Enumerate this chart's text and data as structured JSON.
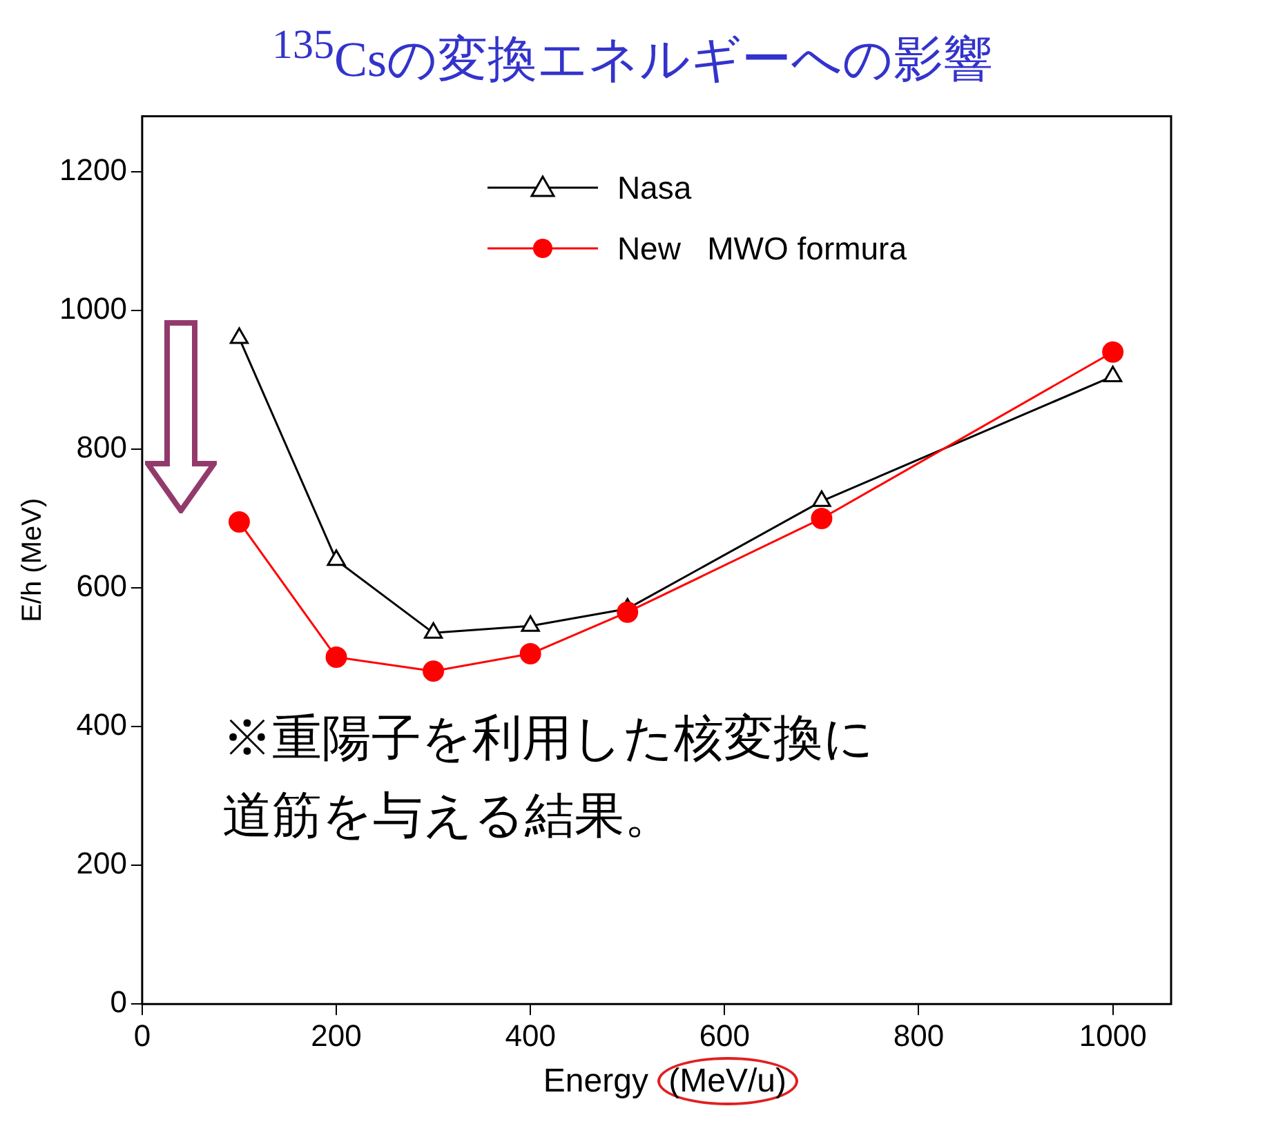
{
  "chart_data": {
    "type": "line",
    "title": "$^{135}$Csの変換エネルギーへの影響",
    "xlabel": "Energy (MeV/u)",
    "ylabel": "E/h (MeV)",
    "x": [
      100,
      200,
      300,
      400,
      500,
      700,
      1000
    ],
    "series": [
      {
        "name": "Nasa",
        "color": "#000000",
        "marker": "triangle",
        "values": [
          960,
          640,
          535,
          545,
          570,
          725,
          905
        ]
      },
      {
        "name": "New   MWO formura",
        "color": "#ff0000",
        "marker": "circle",
        "values": [
          695,
          500,
          480,
          505,
          565,
          700,
          940
        ]
      }
    ],
    "xlim": [
      0,
      1060
    ],
    "xticks": [
      0,
      200,
      400,
      600,
      800,
      1000
    ],
    "ylim": [
      0,
      1280
    ],
    "yticks": [
      0,
      200,
      400,
      600,
      800,
      1000,
      1200
    ],
    "grid": false,
    "legend": "top right",
    "line_style": "solid",
    "annotations": [
      "※重陽子を利用した核変換に道筋を与える結果。"
    ]
  }
}
